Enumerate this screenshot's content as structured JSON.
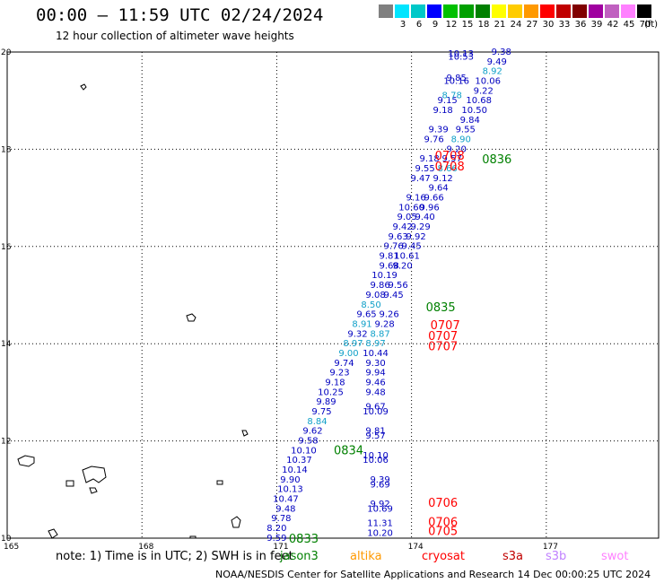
{
  "header": {
    "title": "00:00 — 11:59 UTC 02/24/2024",
    "subtitle": "12 hour collection of altimeter wave heights"
  },
  "legend": {
    "unit": "(ft)",
    "bins": [
      {
        "label": "",
        "color": "#808080"
      },
      {
        "label": "3",
        "color": "#00e5ff"
      },
      {
        "label": "6",
        "color": "#00c8c8"
      },
      {
        "label": "9",
        "color": "#0000ff"
      },
      {
        "label": "12",
        "color": "#00c000"
      },
      {
        "label": "15",
        "color": "#00a000"
      },
      {
        "label": "18",
        "color": "#008000"
      },
      {
        "label": "21",
        "color": "#ffff00"
      },
      {
        "label": "24",
        "color": "#ffcc00"
      },
      {
        "label": "27",
        "color": "#ff9900"
      },
      {
        "label": "30",
        "color": "#ff0000"
      },
      {
        "label": "33",
        "color": "#c00000"
      },
      {
        "label": "36",
        "color": "#800000"
      },
      {
        "label": "39",
        "color": "#a000a0"
      },
      {
        "label": "42",
        "color": "#c060c0"
      },
      {
        "label": "45",
        "color": "#ff80ff"
      },
      {
        "label": "70",
        "color": "#000000"
      }
    ]
  },
  "footer": {
    "note": "note: 1) Time is in UTC; 2) SWH is in feet",
    "satellites": [
      {
        "name": "jason3",
        "color": "#008000"
      },
      {
        "name": "altika",
        "color": "#ff9900"
      },
      {
        "name": "cryosat",
        "color": "#ff0000"
      },
      {
        "name": "s3a",
        "color": "#c00000"
      },
      {
        "name": "s3b",
        "color": "#c080ff"
      },
      {
        "name": "swot",
        "color": "#ff80ff"
      }
    ],
    "credit": "NOAA/NESDIS Center for Satellite Applications and Research    14 Dec 00:00:25 UTC 2024"
  },
  "chart_data": {
    "type": "scatter",
    "title": "00:00 — 11:59 UTC 02/24/2024",
    "subtitle": "12 hour collection of altimeter wave heights",
    "xlabel": "",
    "ylabel": "",
    "xlim": [
      165,
      179.5
    ],
    "ylim": [
      10,
      20
    ],
    "x_ticks": [
      "165",
      "168",
      "171",
      "174",
      "177"
    ],
    "y_ticks": [
      "10",
      "12",
      "14",
      "16",
      "18",
      "20"
    ],
    "grid": true,
    "colors": {
      "dark": "#0000c0",
      "light": "#10a0c8",
      "cryosat": "#ff0000",
      "jason": "#008000"
    },
    "series": [
      {
        "points": [
          {
            "lon": 171.0,
            "lat": 10.02,
            "v": "9.59",
            "c": "dark"
          },
          {
            "lon": 171.0,
            "lat": 10.22,
            "v": "8.20",
            "c": "dark"
          },
          {
            "lon": 171.1,
            "lat": 10.42,
            "v": "9.78",
            "c": "dark"
          },
          {
            "lon": 171.2,
            "lat": 10.62,
            "v": "9.48",
            "c": "dark"
          },
          {
            "lon": 171.2,
            "lat": 10.82,
            "v": "10.47",
            "c": "dark"
          },
          {
            "lon": 171.3,
            "lat": 11.02,
            "v": "10.13",
            "c": "dark"
          },
          {
            "lon": 171.3,
            "lat": 11.22,
            "v": "9.90",
            "c": "dark"
          },
          {
            "lon": 171.4,
            "lat": 11.42,
            "v": "10.14",
            "c": "dark"
          },
          {
            "lon": 171.5,
            "lat": 11.62,
            "v": "10.37",
            "c": "dark"
          },
          {
            "lon": 171.6,
            "lat": 11.82,
            "v": "10.10",
            "c": "dark"
          },
          {
            "lon": 171.7,
            "lat": 12.02,
            "v": "9.58",
            "c": "dark"
          },
          {
            "lon": 171.8,
            "lat": 12.22,
            "v": "9.62",
            "c": "dark"
          },
          {
            "lon": 171.9,
            "lat": 12.42,
            "v": "8.84",
            "c": "light"
          },
          {
            "lon": 172.0,
            "lat": 12.62,
            "v": "9.75",
            "c": "dark"
          },
          {
            "lon": 172.1,
            "lat": 12.82,
            "v": "9.89",
            "c": "dark"
          },
          {
            "lon": 172.2,
            "lat": 13.02,
            "v": "10.25",
            "c": "dark"
          },
          {
            "lon": 172.3,
            "lat": 13.22,
            "v": "9.18",
            "c": "dark"
          },
          {
            "lon": 172.4,
            "lat": 13.42,
            "v": "9.23",
            "c": "dark"
          },
          {
            "lon": 172.5,
            "lat": 13.62,
            "v": "9.74",
            "c": "dark"
          },
          {
            "lon": 172.6,
            "lat": 13.82,
            "v": "9.00",
            "c": "light"
          },
          {
            "lon": 172.7,
            "lat": 14.02,
            "v": "8.97",
            "c": "light"
          },
          {
            "lon": 172.8,
            "lat": 14.22,
            "v": "9.32",
            "c": "dark"
          },
          {
            "lon": 172.9,
            "lat": 14.42,
            "v": "8.91",
            "c": "light"
          },
          {
            "lon": 173.0,
            "lat": 14.62,
            "v": "9.65",
            "c": "dark"
          },
          {
            "lon": 173.1,
            "lat": 14.82,
            "v": "8.50",
            "c": "light"
          },
          {
            "lon": 173.2,
            "lat": 15.02,
            "v": "9.08",
            "c": "dark"
          },
          {
            "lon": 173.3,
            "lat": 15.22,
            "v": "9.86",
            "c": "dark"
          },
          {
            "lon": 173.4,
            "lat": 15.42,
            "v": "10.19",
            "c": "dark"
          },
          {
            "lon": 173.5,
            "lat": 15.62,
            "v": "9.68",
            "c": "dark"
          },
          {
            "lon": 173.5,
            "lat": 15.82,
            "v": "9.81",
            "c": "dark"
          },
          {
            "lon": 173.6,
            "lat": 16.02,
            "v": "9.76",
            "c": "dark"
          },
          {
            "lon": 173.7,
            "lat": 16.22,
            "v": "9.63",
            "c": "dark"
          },
          {
            "lon": 173.8,
            "lat": 16.42,
            "v": "9.42",
            "c": "dark"
          },
          {
            "lon": 173.9,
            "lat": 16.62,
            "v": "9.05",
            "c": "dark"
          },
          {
            "lon": 174.0,
            "lat": 16.82,
            "v": "10.60",
            "c": "dark"
          },
          {
            "lon": 174.1,
            "lat": 17.02,
            "v": "9.16",
            "c": "dark"
          },
          {
            "lon": 174.2,
            "lat": 17.42,
            "v": "9.47",
            "c": "dark"
          },
          {
            "lon": 174.3,
            "lat": 17.62,
            "v": "9.55",
            "c": "dark"
          },
          {
            "lon": 174.4,
            "lat": 17.82,
            "v": "9.18",
            "c": "dark"
          },
          {
            "lon": 174.5,
            "lat": 18.22,
            "v": "9.76",
            "c": "dark"
          },
          {
            "lon": 174.6,
            "lat": 18.42,
            "v": "9.39",
            "c": "dark"
          },
          {
            "lon": 174.7,
            "lat": 18.82,
            "v": "9.18",
            "c": "dark"
          },
          {
            "lon": 174.8,
            "lat": 19.02,
            "v": "9.15",
            "c": "dark"
          },
          {
            "lon": 174.9,
            "lat": 19.12,
            "v": "8.78",
            "c": "light"
          },
          {
            "lon": 175.0,
            "lat": 19.42,
            "v": "10.16",
            "c": "dark"
          },
          {
            "lon": 175.0,
            "lat": 19.48,
            "v": "9.85",
            "c": "dark"
          },
          {
            "lon": 175.1,
            "lat": 19.92,
            "v": "10.53",
            "c": "dark"
          },
          {
            "lon": 175.1,
            "lat": 19.98,
            "v": "10.13",
            "c": "dark"
          },
          {
            "lon": 176.0,
            "lat": 20.02,
            "v": "9.38",
            "c": "dark"
          },
          {
            "lon": 175.9,
            "lat": 19.82,
            "v": "9.49",
            "c": "dark"
          },
          {
            "lon": 175.8,
            "lat": 19.62,
            "v": "8.92",
            "c": "light"
          },
          {
            "lon": 175.7,
            "lat": 19.42,
            "v": "10.06",
            "c": "dark"
          },
          {
            "lon": 175.6,
            "lat": 19.22,
            "v": "9.22",
            "c": "dark"
          },
          {
            "lon": 175.5,
            "lat": 19.02,
            "v": "10.68",
            "c": "dark"
          },
          {
            "lon": 175.4,
            "lat": 18.82,
            "v": "10.50",
            "c": "dark"
          },
          {
            "lon": 175.3,
            "lat": 18.62,
            "v": "9.84",
            "c": "dark"
          },
          {
            "lon": 175.2,
            "lat": 18.42,
            "v": "9.55",
            "c": "dark"
          },
          {
            "lon": 175.1,
            "lat": 18.22,
            "v": "8.90",
            "c": "light"
          },
          {
            "lon": 175.0,
            "lat": 18.02,
            "v": "9.20",
            "c": "dark"
          },
          {
            "lon": 174.9,
            "lat": 17.82,
            "v": "9.57",
            "c": "dark"
          },
          {
            "lon": 174.8,
            "lat": 17.62,
            "v": "8.66",
            "c": "light"
          },
          {
            "lon": 174.7,
            "lat": 17.42,
            "v": "9.12",
            "c": "dark"
          },
          {
            "lon": 174.6,
            "lat": 17.22,
            "v": "9.64",
            "c": "dark"
          },
          {
            "lon": 174.5,
            "lat": 17.02,
            "v": "9.66",
            "c": "dark"
          },
          {
            "lon": 174.4,
            "lat": 16.82,
            "v": "9.96",
            "c": "dark"
          },
          {
            "lon": 174.3,
            "lat": 16.62,
            "v": "9.40",
            "c": "dark"
          },
          {
            "lon": 174.2,
            "lat": 16.42,
            "v": "9.29",
            "c": "dark"
          },
          {
            "lon": 174.1,
            "lat": 16.22,
            "v": "9.92",
            "c": "dark"
          },
          {
            "lon": 174.0,
            "lat": 16.02,
            "v": "9.45",
            "c": "dark"
          },
          {
            "lon": 173.9,
            "lat": 15.82,
            "v": "10.61",
            "c": "dark"
          },
          {
            "lon": 173.8,
            "lat": 15.62,
            "v": "9.20",
            "c": "dark"
          },
          {
            "lon": 173.7,
            "lat": 15.22,
            "v": "9.56",
            "c": "dark"
          },
          {
            "lon": 173.6,
            "lat": 15.02,
            "v": "9.45",
            "c": "dark"
          },
          {
            "lon": 173.5,
            "lat": 14.62,
            "v": "9.26",
            "c": "dark"
          },
          {
            "lon": 173.4,
            "lat": 14.42,
            "v": "9.28",
            "c": "dark"
          },
          {
            "lon": 173.3,
            "lat": 14.22,
            "v": "8.87",
            "c": "light"
          },
          {
            "lon": 173.2,
            "lat": 14.02,
            "v": "8.97",
            "c": "light"
          },
          {
            "lon": 173.2,
            "lat": 13.82,
            "v": "10.44",
            "c": "dark"
          },
          {
            "lon": 173.2,
            "lat": 13.62,
            "v": "9.30",
            "c": "dark"
          },
          {
            "lon": 173.2,
            "lat": 13.42,
            "v": "9.94",
            "c": "dark"
          },
          {
            "lon": 173.2,
            "lat": 13.22,
            "v": "9.46",
            "c": "dark"
          },
          {
            "lon": 173.2,
            "lat": 13.02,
            "v": "9.48",
            "c": "dark"
          },
          {
            "lon": 173.2,
            "lat": 12.72,
            "v": "9.67",
            "c": "dark"
          },
          {
            "lon": 173.2,
            "lat": 12.62,
            "v": "10.09",
            "c": "dark"
          },
          {
            "lon": 173.2,
            "lat": 12.22,
            "v": "9.81",
            "c": "dark"
          },
          {
            "lon": 173.2,
            "lat": 12.12,
            "v": "9.57",
            "c": "dark"
          },
          {
            "lon": 173.2,
            "lat": 11.72,
            "v": "10.10",
            "c": "dark"
          },
          {
            "lon": 173.2,
            "lat": 11.62,
            "v": "10.06",
            "c": "dark"
          },
          {
            "lon": 173.3,
            "lat": 11.22,
            "v": "9.39",
            "c": "dark"
          },
          {
            "lon": 173.3,
            "lat": 11.12,
            "v": "9.69",
            "c": "dark"
          },
          {
            "lon": 173.3,
            "lat": 10.72,
            "v": "9.92",
            "c": "dark"
          },
          {
            "lon": 173.3,
            "lat": 10.62,
            "v": "10.69",
            "c": "dark"
          },
          {
            "lon": 173.3,
            "lat": 10.32,
            "v": "11.31",
            "c": "dark"
          },
          {
            "lon": 173.3,
            "lat": 10.12,
            "v": "10.20",
            "c": "dark"
          }
        ]
      }
    ],
    "pass_labels": [
      {
        "lon": 174.85,
        "lat": 17.88,
        "v": "0708",
        "c": "cryosat"
      },
      {
        "lon": 174.85,
        "lat": 17.66,
        "v": "0708",
        "c": "cryosat"
      },
      {
        "lon": 175.9,
        "lat": 17.8,
        "v": "0836",
        "c": "jason"
      },
      {
        "lon": 174.65,
        "lat": 14.76,
        "v": "0835",
        "c": "jason"
      },
      {
        "lon": 174.75,
        "lat": 14.39,
        "v": "0707",
        "c": "cryosat"
      },
      {
        "lon": 174.7,
        "lat": 14.17,
        "v": "0707",
        "c": "cryosat"
      },
      {
        "lon": 174.7,
        "lat": 13.96,
        "v": "0707",
        "c": "cryosat"
      },
      {
        "lon": 172.6,
        "lat": 11.82,
        "v": "0834",
        "c": "jason"
      },
      {
        "lon": 174.7,
        "lat": 10.74,
        "v": "0706",
        "c": "cryosat"
      },
      {
        "lon": 174.7,
        "lat": 10.34,
        "v": "0706",
        "c": "cryosat"
      },
      {
        "lon": 174.7,
        "lat": 10.16,
        "v": "0705",
        "c": "cryosat"
      },
      {
        "lon": 171.6,
        "lat": 10.0,
        "v": "0833",
        "c": "jason"
      }
    ]
  }
}
